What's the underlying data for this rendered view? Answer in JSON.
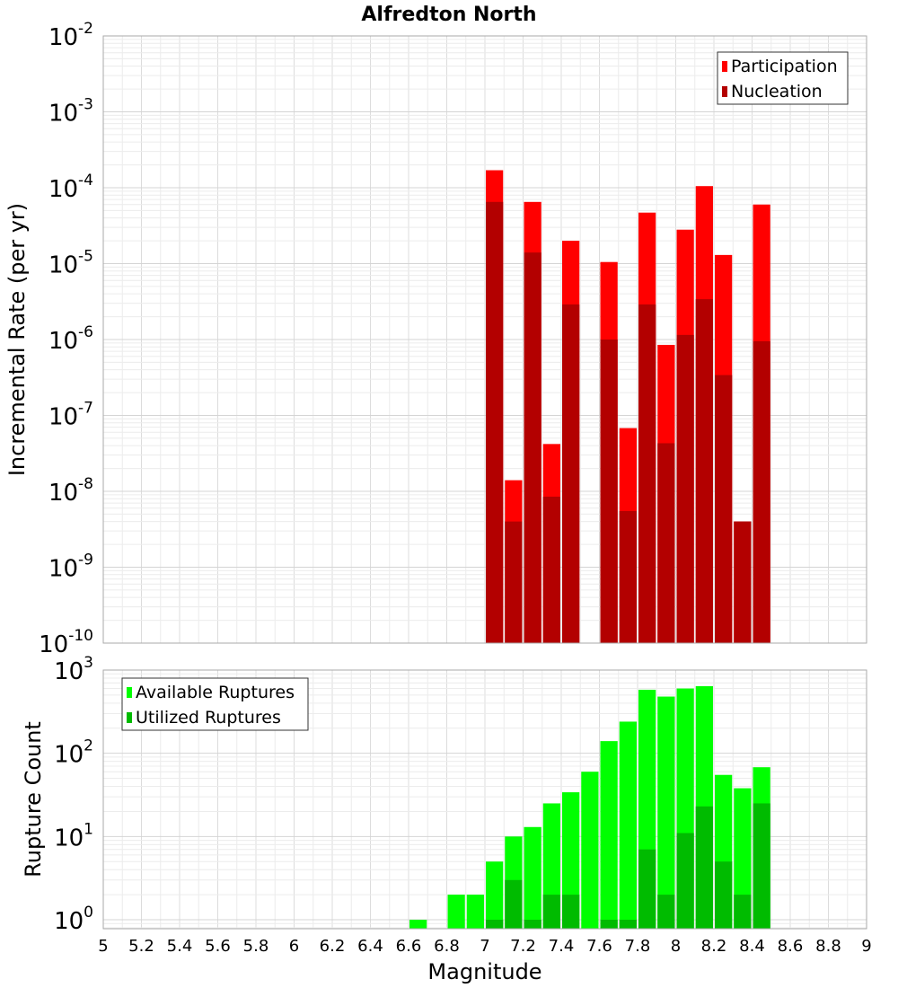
{
  "chart_data": [
    {
      "type": "bar",
      "title": "Alfredton North",
      "ylabel": "Incremental Rate (per yr)",
      "yscale": "log",
      "ylim": [
        1e-10,
        0.01
      ],
      "ytick_exponents": [
        "-10",
        "-9",
        "-8",
        "-7",
        "-6",
        "-5",
        "-4",
        "-3",
        "-2"
      ],
      "xlim": [
        5,
        9
      ],
      "bar_width": 0.1,
      "grid": true,
      "legend_position": "top-right",
      "x": [
        7.05,
        7.15,
        7.25,
        7.35,
        7.45,
        7.65,
        7.75,
        7.85,
        7.95,
        8.05,
        8.15,
        8.25,
        8.35,
        8.45
      ],
      "series": [
        {
          "name": "Participation",
          "color": "#ff0000",
          "values": [
            0.00017,
            1.4e-08,
            6.5e-05,
            4.2e-08,
            2e-05,
            1.05e-05,
            6.8e-08,
            4.7e-05,
            8.5e-07,
            2.8e-05,
            0.000105,
            1.3e-05,
            4e-09,
            6e-05
          ]
        },
        {
          "name": "Nucleation",
          "color": "#b30000",
          "values": [
            6.5e-05,
            4e-09,
            1.4e-05,
            8.5e-09,
            2.9e-06,
            1e-06,
            5.5e-09,
            2.9e-06,
            4.3e-08,
            1.15e-06,
            3.4e-06,
            3.4e-07,
            4e-09,
            9.5e-07
          ]
        }
      ]
    },
    {
      "type": "bar",
      "ylabel": "Rupture Count",
      "xlabel": "Magnitude",
      "yscale": "log",
      "ylim": [
        0.78,
        1000
      ],
      "ytick_exponents": [
        "0",
        "1",
        "2",
        "3"
      ],
      "xlim": [
        5,
        9
      ],
      "xticks": [
        "5",
        "5.2",
        "5.4",
        "5.6",
        "5.8",
        "6",
        "6.2",
        "6.4",
        "6.6",
        "6.8",
        "7",
        "7.2",
        "7.4",
        "7.6",
        "7.8",
        "8",
        "8.2",
        "8.4",
        "8.6",
        "8.8",
        "9"
      ],
      "bar_width": 0.1,
      "grid": true,
      "legend_position": "top-left",
      "x": [
        6.65,
        6.85,
        6.95,
        7.05,
        7.15,
        7.25,
        7.35,
        7.45,
        7.55,
        7.65,
        7.75,
        7.85,
        7.95,
        8.05,
        8.15,
        8.25,
        8.35,
        8.45
      ],
      "series": [
        {
          "name": "Available Ruptures",
          "color": "#00ff00",
          "values": [
            1,
            2,
            2,
            5,
            10,
            13,
            25,
            34,
            60,
            140,
            240,
            580,
            480,
            600,
            640,
            55,
            38,
            68
          ]
        },
        {
          "name": "Utilized Ruptures",
          "color": "#00bb00",
          "values": [
            0,
            0,
            0,
            1,
            3,
            1,
            2,
            2,
            0,
            1,
            1,
            7,
            2,
            11,
            23,
            5,
            2,
            25
          ]
        }
      ]
    }
  ]
}
